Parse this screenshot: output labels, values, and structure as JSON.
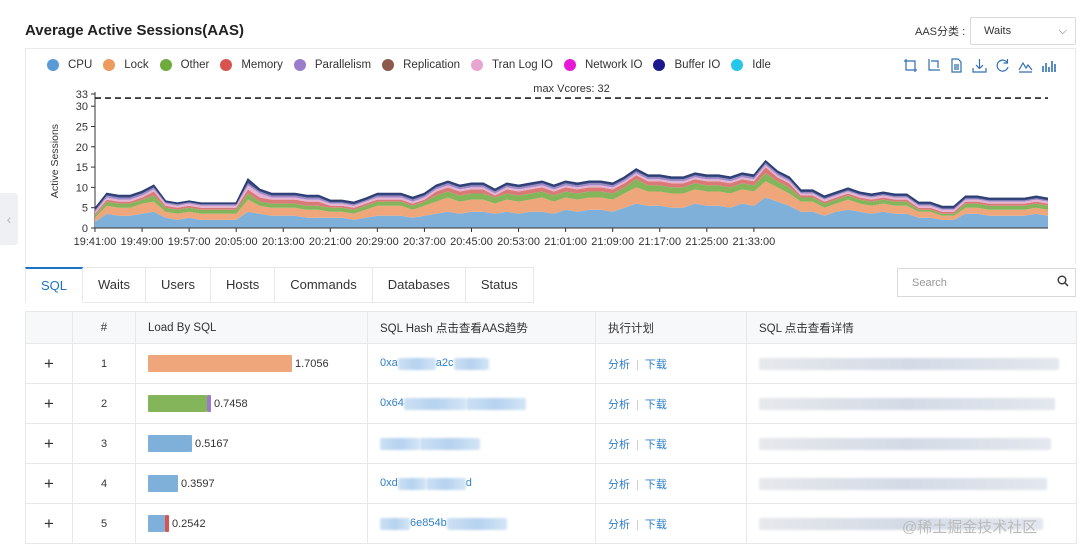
{
  "panel": {
    "title": "Average Active Sessions(AAS)",
    "aas_label": "AAS分类 :",
    "aas_selected": "Waits"
  },
  "legend": [
    {
      "name": "CPU",
      "color": "#5b9bd5"
    },
    {
      "name": "Lock",
      "color": "#ed9a5f"
    },
    {
      "name": "Other",
      "color": "#6eab3c"
    },
    {
      "name": "Memory",
      "color": "#d9534f"
    },
    {
      "name": "Parallelism",
      "color": "#9a7cc9"
    },
    {
      "name": "Replication",
      "color": "#8b5a4a"
    },
    {
      "name": "Tran Log IO",
      "color": "#e7a6cf"
    },
    {
      "name": "Network IO",
      "color": "#e619d6"
    },
    {
      "name": "Buffer IO",
      "color": "#1a1a8c"
    },
    {
      "name": "Idle",
      "color": "#26c6e8"
    }
  ],
  "toolbox": [
    "zoom-icon",
    "zoom-reset-icon",
    "data-view-icon",
    "download-icon",
    "refresh-icon",
    "line-chart-icon",
    "bar-chart-icon"
  ],
  "chart_data": {
    "type": "area",
    "ylabel": "Active Sessions",
    "ylim": [
      0,
      33
    ],
    "yticks": [
      0,
      5,
      10,
      15,
      20,
      25,
      30,
      33
    ],
    "max_line": {
      "value": 32,
      "label": "max Vcores: 32"
    },
    "xticks": [
      "19:41:00",
      "19:49:00",
      "19:57:00",
      "20:05:00",
      "20:13:00",
      "20:21:00",
      "20:29:00",
      "20:37:00",
      "20:45:00",
      "20:53:00",
      "21:01:00",
      "21:09:00",
      "21:17:00",
      "21:25:00",
      "21:33:00"
    ],
    "x_start_minute": 0,
    "x_step_minutes": 2,
    "series": [
      {
        "name": "CPU",
        "color": "#7fb0d9",
        "values": [
          1.5,
          3.5,
          3,
          3,
          3.5,
          4,
          2.5,
          2,
          2.5,
          2,
          2,
          2,
          2,
          4,
          3.5,
          3,
          3,
          3,
          2.5,
          2.5,
          2.5,
          2.5,
          2,
          2.5,
          3,
          3,
          3,
          2.5,
          3,
          3.5,
          4,
          3.5,
          4,
          4,
          3.5,
          4,
          3.5,
          4,
          4,
          3.5,
          4.5,
          4,
          4.5,
          4.5,
          4,
          5,
          6,
          5.5,
          5.5,
          5,
          5,
          6,
          5.5,
          5.5,
          5,
          6,
          5.5,
          7.5,
          6.5,
          5.5,
          4,
          4,
          3,
          4,
          4.5,
          4,
          3.5,
          4,
          3.5,
          3.5,
          2.5,
          2.5,
          2,
          2,
          3.5,
          3.5,
          3,
          3,
          3,
          3,
          3.5,
          3
        ]
      },
      {
        "name": "Lock",
        "color": "#eea67a",
        "values": [
          1,
          2,
          2,
          2,
          2.5,
          2.5,
          1.5,
          1.5,
          1.5,
          1.5,
          1.5,
          1.5,
          1.5,
          3,
          2,
          2,
          2,
          2,
          2,
          2,
          1.5,
          1.5,
          1.5,
          2,
          2.5,
          2.5,
          2.5,
          2,
          2.5,
          3,
          3.5,
          3,
          3,
          3,
          2.5,
          3,
          3,
          3,
          3.5,
          3,
          3,
          3,
          3,
          3,
          3,
          3.5,
          4,
          3.5,
          3.5,
          3.5,
          3.5,
          3.5,
          3.5,
          3.5,
          3.5,
          3.5,
          3.5,
          4,
          3.5,
          3,
          2.5,
          2.5,
          2,
          2,
          2.5,
          2,
          2,
          2,
          2,
          2,
          1.5,
          1.5,
          1,
          1,
          1.5,
          1.5,
          1.5,
          1.5,
          1.5,
          1.5,
          1.5,
          1.5
        ]
      },
      {
        "name": "Other",
        "color": "#84b55a",
        "values": [
          0.5,
          1,
          1,
          1,
          1,
          1.5,
          1,
          1,
          1,
          1,
          1,
          1,
          1,
          1.5,
          1,
          1,
          1,
          1,
          1,
          1,
          1,
          1,
          1,
          1,
          1,
          1,
          1,
          1,
          1,
          1.5,
          1.5,
          1.5,
          1.5,
          1.5,
          1.5,
          1.5,
          1.5,
          1.5,
          1.5,
          1.5,
          1.5,
          1.5,
          1.5,
          1.5,
          1.5,
          1.5,
          2,
          1.5,
          1.5,
          1.5,
          1.5,
          1.5,
          1.5,
          1.5,
          1.5,
          1.5,
          1.5,
          2,
          1.5,
          1.5,
          1,
          1,
          1,
          1,
          1,
          1,
          1,
          1,
          1,
          1,
          0.5,
          0.5,
          0.5,
          0.5,
          1,
          1,
          1,
          1,
          1,
          1,
          1,
          1
        ]
      },
      {
        "name": "Memory",
        "color": "#d97a76",
        "values": [
          0.5,
          0.5,
          0.5,
          0.5,
          0.5,
          1,
          0.5,
          0.5,
          0.5,
          0.5,
          0.5,
          0.5,
          0.5,
          1,
          1,
          1,
          1,
          1,
          1,
          1,
          0.5,
          0.5,
          0.5,
          0.5,
          0.5,
          0.5,
          0.5,
          0.5,
          0.5,
          1,
          1,
          1,
          1,
          1,
          0.5,
          1,
          1,
          1,
          1,
          1,
          1,
          1,
          1,
          1,
          1,
          1,
          1,
          1,
          1,
          1,
          1,
          1,
          1,
          1,
          1,
          1,
          1,
          1.5,
          1,
          1,
          0.5,
          0.5,
          0.5,
          0.5,
          0.5,
          0.5,
          0.5,
          0.5,
          0.5,
          0.5,
          0.5,
          0.5,
          0.5,
          0.5,
          0.5,
          0.5,
          0.5,
          0.5,
          0.5,
          0.5,
          0.5,
          0.5
        ]
      },
      {
        "name": "Tran Log IO",
        "color": "#e6b3d4",
        "values": [
          0.5,
          0.5,
          0.5,
          0.5,
          0.5,
          0.5,
          0.5,
          0.5,
          0.5,
          0.5,
          0.5,
          0.5,
          0.5,
          1,
          1,
          0.5,
          0.5,
          0.5,
          0.5,
          0.5,
          0.5,
          0.5,
          0.5,
          0.5,
          0.5,
          0.5,
          0.5,
          0.5,
          0.5,
          0.5,
          0.5,
          0.5,
          0.5,
          0.5,
          0.5,
          0.5,
          0.5,
          0.5,
          0.5,
          0.5,
          0.5,
          0.5,
          0.5,
          0.5,
          0.5,
          0.5,
          0.5,
          0.5,
          0.5,
          0.5,
          0.5,
          0.5,
          0.5,
          0.5,
          0.5,
          0.5,
          0.5,
          0.5,
          0.5,
          0.5,
          0.5,
          0.5,
          0.5,
          0.5,
          0.5,
          0.5,
          0.5,
          0.5,
          0.5,
          0.5,
          0.5,
          0.5,
          0.5,
          0.5,
          0.5,
          0.5,
          0.5,
          0.5,
          0.5,
          0.5,
          0.5,
          0.5
        ]
      },
      {
        "name": "Parallelism",
        "color": "#9c8bc7",
        "values": [
          0.3,
          0.5,
          0.5,
          0.5,
          0.5,
          0.5,
          0.3,
          0.3,
          0.3,
          0.3,
          0.3,
          0.3,
          0.3,
          0.5,
          0.5,
          0.5,
          0.5,
          0.5,
          0.5,
          0.5,
          0.3,
          0.3,
          0.3,
          0.3,
          0.5,
          0.5,
          0.5,
          0.5,
          0.5,
          0.5,
          0.5,
          0.5,
          0.5,
          0.5,
          0.5,
          0.5,
          0.5,
          0.5,
          0.5,
          0.5,
          0.5,
          0.5,
          0.5,
          0.5,
          0.5,
          0.5,
          0.5,
          0.5,
          0.5,
          0.5,
          0.5,
          0.5,
          0.5,
          0.5,
          0.5,
          0.5,
          0.5,
          0.5,
          0.5,
          0.5,
          0.3,
          0.3,
          0.3,
          0.3,
          0.3,
          0.3,
          0.3,
          0.3,
          0.3,
          0.3,
          0.3,
          0.3,
          0.3,
          0.3,
          0.3,
          0.3,
          0.3,
          0.3,
          0.3,
          0.3,
          0.3,
          0.3
        ]
      },
      {
        "name": "Buffer IO",
        "color": "#3a4a82",
        "values": [
          0.5,
          0.5,
          0.5,
          0.5,
          0.5,
          0.5,
          0.3,
          0.3,
          0.3,
          0.3,
          0.3,
          0.3,
          0.3,
          1,
          0.5,
          0.5,
          0.5,
          0.5,
          0.5,
          0.5,
          0.5,
          0.5,
          0.5,
          0.5,
          0.5,
          0.5,
          0.5,
          0.5,
          0.5,
          0.5,
          0.5,
          0.5,
          0.5,
          0.5,
          0.5,
          0.5,
          0.5,
          0.5,
          0.5,
          0.5,
          0.5,
          0.5,
          0.5,
          0.5,
          0.5,
          0.5,
          0.5,
          0.5,
          0.5,
          0.5,
          0.5,
          0.5,
          0.5,
          0.5,
          0.5,
          0.5,
          0.5,
          0.5,
          0.5,
          0.5,
          0.5,
          0.5,
          0.5,
          0.5,
          0.5,
          0.5,
          0.5,
          0.5,
          0.5,
          0.5,
          0.5,
          0.5,
          0.5,
          0.5,
          0.5,
          0.5,
          0.5,
          0.5,
          0.5,
          0.5,
          0.5,
          0.5
        ]
      }
    ]
  },
  "tabs": [
    "SQL",
    "Waits",
    "Users",
    "Hosts",
    "Commands",
    "Databases",
    "Status"
  ],
  "search": {
    "placeholder": "Search"
  },
  "table": {
    "headers": [
      "",
      "#",
      "Load By SQL",
      "SQL Hash 点击查看AAS趋势",
      "执行计划",
      "SQL 点击查看详情"
    ],
    "action_analyze": "分析",
    "action_download": "下载",
    "rows": [
      {
        "num": "1",
        "load": "1.7056",
        "load_fraction": 1.0,
        "colors": [
          "#eea67a"
        ],
        "hash_prefix": "0xa",
        "hash_mid": "a2c",
        "hash_suffix": ""
      },
      {
        "num": "2",
        "load": "0.7458",
        "load_fraction": 0.437,
        "colors": [
          "#84b55a",
          "#9a7cc9"
        ],
        "hash_prefix": "0x64",
        "hash_mid": "",
        "hash_suffix": ""
      },
      {
        "num": "3",
        "load": "0.5167",
        "load_fraction": 0.303,
        "colors": [
          "#7fb0d9"
        ],
        "hash_prefix": "",
        "hash_mid": "",
        "hash_suffix": ""
      },
      {
        "num": "4",
        "load": "0.3597",
        "load_fraction": 0.211,
        "colors": [
          "#7fb0d9"
        ],
        "hash_prefix": "0xd",
        "hash_mid": "",
        "hash_suffix": "d"
      },
      {
        "num": "5",
        "load": "0.2542",
        "load_fraction": 0.149,
        "colors": [
          "#7fb0d9",
          "#d9534f"
        ],
        "hash_prefix": "",
        "hash_mid": "6e854b",
        "hash_suffix": ""
      }
    ]
  },
  "watermark": "@稀土掘金技术社区"
}
